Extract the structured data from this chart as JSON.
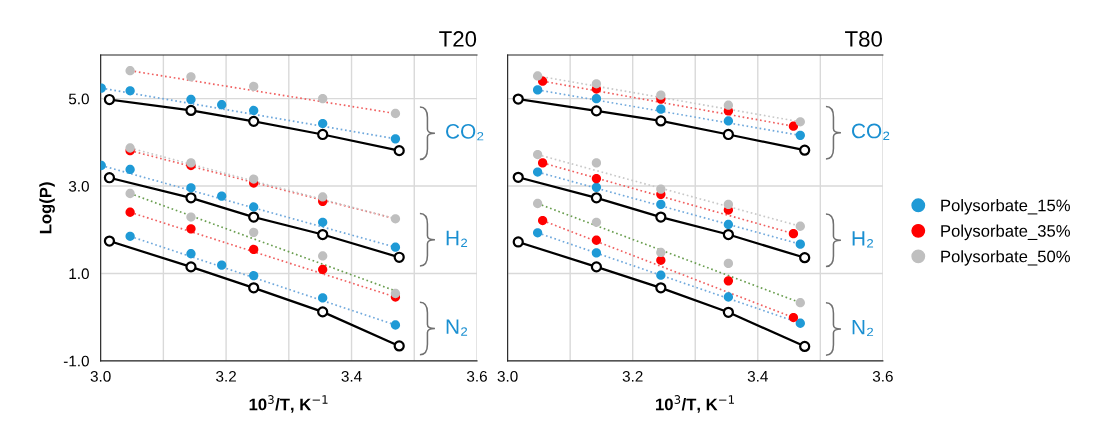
{
  "chart_data": [
    {
      "type": "scatter",
      "title": "T20",
      "xlabel": "10$^{3}$/T, K$^{−1}$",
      "ylabel": "Log(P)",
      "xlim": [
        3.0,
        3.6
      ],
      "ylim": [
        -1.0,
        6.0
      ],
      "xticks": [
        {
          "value": 3.0,
          "label": "3.0"
        },
        {
          "value": 3.1,
          "label": null
        },
        {
          "value": 3.2,
          "label": "3.2"
        },
        {
          "value": 3.3,
          "label": null
        },
        {
          "value": 3.4,
          "label": "3.4"
        },
        {
          "value": 3.5,
          "label": null
        },
        {
          "value": 3.6,
          "label": "3.6"
        }
      ],
      "yticks": [
        {
          "value": -1,
          "label": "-1.0"
        },
        {
          "value": 1,
          "label": "1.0"
        },
        {
          "value": 3,
          "label": "3.0"
        },
        {
          "value": 5,
          "label": "5.0"
        }
      ],
      "grid": true,
      "annotations": [
        "CO₂",
        "H₂",
        "N₂"
      ],
      "series": [
        {
          "type": "line",
          "color": "#6fa8dc",
          "line_style": "dotted",
          "marker": "none",
          "x": [
            3.001,
            3.47
          ],
          "values": [
            5.24,
            4.08
          ]
        },
        {
          "type": "line",
          "color": "#6fa8dc",
          "line_style": "dotted",
          "marker": "none",
          "x": [
            3.001,
            3.47
          ],
          "values": [
            3.47,
            1.6
          ]
        },
        {
          "type": "line",
          "color": "#6fa8dc",
          "line_style": "dotted",
          "marker": "none",
          "x": [
            3.047,
            3.47
          ],
          "values": [
            1.85,
            -0.18
          ]
        },
        {
          "type": "line",
          "color": "#f06060",
          "line_style": "dotted",
          "marker": "none",
          "x": [
            3.047,
            3.47
          ],
          "values": [
            5.64,
            4.66
          ]
        },
        {
          "type": "line",
          "color": "#f06060",
          "line_style": "dotted",
          "marker": "none",
          "x": [
            3.047,
            3.47
          ],
          "values": [
            3.81,
            2.25
          ]
        },
        {
          "type": "line",
          "color": "#f06060",
          "line_style": "dotted",
          "marker": "none",
          "x": [
            3.047,
            3.47
          ],
          "values": [
            2.4,
            0.46
          ]
        },
        {
          "type": "line",
          "color": "#c8c8c8",
          "line_style": "dotted",
          "marker": "none",
          "x": [
            3.047,
            3.47
          ],
          "values": [
            3.87,
            2.25
          ]
        },
        {
          "type": "line",
          "color": "#6a9e50",
          "line_style": "dotted",
          "marker": "none",
          "x": [
            3.047,
            3.47
          ],
          "values": [
            2.83,
            0.6
          ]
        },
        {
          "type": "line",
          "color": "#000000",
          "line_style": "solid",
          "marker": "circle",
          "x": [
            3.014,
            3.144,
            3.244,
            3.354,
            3.476
          ],
          "values": [
            4.98,
            4.73,
            4.48,
            4.18,
            3.81
          ]
        },
        {
          "type": "line",
          "color": "#000000",
          "line_style": "solid",
          "marker": "circle",
          "x": [
            3.014,
            3.144,
            3.244,
            3.354,
            3.476
          ],
          "values": [
            3.19,
            2.73,
            2.29,
            1.89,
            1.37
          ]
        },
        {
          "type": "line",
          "color": "#000000",
          "line_style": "solid",
          "marker": "circle",
          "x": [
            3.014,
            3.144,
            3.244,
            3.354,
            3.476
          ],
          "values": [
            1.74,
            1.15,
            0.67,
            0.12,
            -0.66
          ]
        },
        {
          "color": "#1f9ad6",
          "marker": "circle",
          "x": [
            3.001,
            3.047,
            3.144,
            3.193,
            3.244,
            3.354,
            3.47,
            3.001,
            3.047,
            3.144,
            3.193,
            3.244,
            3.354,
            3.47,
            3.047,
            3.144,
            3.193,
            3.244,
            3.354,
            3.47
          ],
          "values": [
            5.24,
            5.18,
            4.98,
            4.86,
            4.73,
            4.43,
            4.08,
            3.47,
            3.38,
            2.96,
            2.77,
            2.52,
            2.17,
            1.6,
            1.85,
            1.45,
            1.19,
            0.95,
            0.44,
            -0.18
          ]
        },
        {
          "color": "#ff0000",
          "marker": "circle",
          "x": [
            3.047,
            3.144,
            3.244,
            3.354,
            3.047,
            3.144,
            3.244,
            3.354,
            3.47
          ],
          "values": [
            3.81,
            3.47,
            3.07,
            2.65,
            2.4,
            2.02,
            1.55,
            1.09,
            0.46
          ]
        },
        {
          "color": "#bfbfbf",
          "marker": "circle",
          "x": [
            3.047,
            3.144,
            3.244,
            3.354,
            3.47,
            3.047,
            3.144,
            3.244,
            3.354,
            3.47,
            3.047,
            3.144,
            3.244,
            3.354,
            3.47
          ],
          "values": [
            5.64,
            5.5,
            5.28,
            5.0,
            4.66,
            3.87,
            3.53,
            3.16,
            2.75,
            2.25,
            2.83,
            2.29,
            1.94,
            1.4,
            0.54
          ]
        }
      ]
    },
    {
      "type": "scatter",
      "title": "T80",
      "xlabel": "10$^{3}$/T, K$^{−1}$",
      "xlim": [
        3.0,
        3.6
      ],
      "ylim": [
        -1.0,
        6.0
      ],
      "tick_labels": "x",
      "xticks": [
        {
          "value": 3.0,
          "label": "3.0"
        },
        {
          "value": 3.1,
          "label": null
        },
        {
          "value": 3.2,
          "label": "3.2"
        },
        {
          "value": 3.3,
          "label": null
        },
        {
          "value": 3.4,
          "label": "3.4"
        },
        {
          "value": 3.5,
          "label": null
        },
        {
          "value": 3.6,
          "label": "3.6"
        }
      ],
      "yticks": [
        -1,
        1,
        3,
        5
      ],
      "grid": true,
      "legend": "right",
      "annotations": [
        "CO₂",
        "H₂",
        "N₂"
      ],
      "series": [
        {
          "type": "line",
          "color": "#6fa8dc",
          "line_style": "dotted",
          "marker": "none",
          "x": [
            3.048,
            3.468
          ],
          "values": [
            5.2,
            4.16
          ]
        },
        {
          "type": "line",
          "color": "#6fa8dc",
          "line_style": "dotted",
          "marker": "none",
          "x": [
            3.048,
            3.468
          ],
          "values": [
            3.32,
            1.67
          ]
        },
        {
          "type": "line",
          "color": "#6fa8dc",
          "line_style": "dotted",
          "marker": "none",
          "x": [
            3.048,
            3.468
          ],
          "values": [
            1.93,
            -0.14
          ]
        },
        {
          "type": "line",
          "color": "#f06060",
          "line_style": "dotted",
          "marker": "none",
          "x": [
            3.056,
            3.457
          ],
          "values": [
            5.4,
            4.37
          ]
        },
        {
          "type": "line",
          "color": "#f06060",
          "line_style": "dotted",
          "marker": "none",
          "x": [
            3.056,
            3.457
          ],
          "values": [
            3.53,
            1.91
          ]
        },
        {
          "type": "line",
          "color": "#f06060",
          "line_style": "dotted",
          "marker": "none",
          "x": [
            3.056,
            3.457
          ],
          "values": [
            2.21,
            -0.01
          ]
        },
        {
          "type": "line",
          "color": "#c8c8c8",
          "line_style": "dotted",
          "marker": "none",
          "x": [
            3.048,
            3.468
          ],
          "values": [
            5.52,
            4.47
          ]
        },
        {
          "type": "line",
          "color": "#c8c8c8",
          "line_style": "dotted",
          "marker": "none",
          "x": [
            3.048,
            3.468
          ],
          "values": [
            3.72,
            2.08
          ]
        },
        {
          "type": "line",
          "color": "#6a9e50",
          "line_style": "dotted",
          "marker": "none",
          "x": [
            3.048,
            3.468
          ],
          "values": [
            2.6,
            0.33
          ]
        },
        {
          "type": "line",
          "color": "#000000",
          "line_style": "solid",
          "marker": "circle",
          "x": [
            3.017,
            3.142,
            3.245,
            3.353,
            3.475
          ],
          "values": [
            4.99,
            4.72,
            4.49,
            4.18,
            3.82
          ]
        },
        {
          "type": "line",
          "color": "#000000",
          "line_style": "solid",
          "marker": "circle",
          "x": [
            3.017,
            3.142,
            3.245,
            3.353,
            3.475
          ],
          "values": [
            3.2,
            2.73,
            2.29,
            1.89,
            1.36
          ]
        },
        {
          "type": "line",
          "color": "#000000",
          "line_style": "solid",
          "marker": "circle",
          "x": [
            3.017,
            3.142,
            3.245,
            3.353,
            3.475
          ],
          "values": [
            1.72,
            1.15,
            0.67,
            0.11,
            -0.67
          ]
        },
        {
          "name": "Polysorbate_15%",
          "color": "#1f9ad6",
          "marker": "circle",
          "x": [
            3.048,
            3.142,
            3.245,
            3.353,
            3.468,
            3.048,
            3.142,
            3.245,
            3.353,
            3.468,
            3.048,
            3.142,
            3.245,
            3.353,
            3.468
          ],
          "values": [
            5.2,
            5.0,
            4.76,
            4.49,
            4.16,
            3.32,
            2.97,
            2.58,
            2.12,
            1.67,
            1.93,
            1.47,
            0.96,
            0.46,
            -0.14
          ]
        },
        {
          "name": "Polysorbate_35%",
          "color": "#ff0000",
          "marker": "circle",
          "x": [
            3.056,
            3.142,
            3.245,
            3.353,
            3.457,
            3.056,
            3.142,
            3.245,
            3.353,
            3.457,
            3.056,
            3.142,
            3.245,
            3.353,
            3.457
          ],
          "values": [
            5.4,
            5.22,
            4.99,
            4.72,
            4.37,
            3.53,
            3.17,
            2.81,
            2.45,
            1.91,
            2.21,
            1.76,
            1.3,
            0.83,
            -0.01
          ]
        },
        {
          "name": "Polysorbate_50%",
          "color": "#bfbfbf",
          "marker": "circle",
          "x": [
            3.048,
            3.142,
            3.245,
            3.353,
            3.468,
            3.048,
            3.142,
            3.245,
            3.353,
            3.468,
            3.048,
            3.142,
            3.245,
            3.353,
            3.468
          ],
          "values": [
            5.52,
            5.34,
            5.08,
            4.85,
            4.47,
            3.72,
            3.53,
            2.93,
            2.58,
            2.08,
            2.6,
            2.17,
            1.48,
            1.23,
            0.33
          ]
        }
      ]
    }
  ]
}
